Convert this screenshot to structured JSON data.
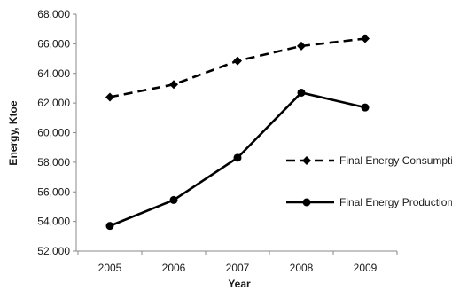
{
  "chart_data": {
    "type": "line",
    "title": "",
    "xlabel": "Year",
    "ylabel": "Energy, Ktoe",
    "categories": [
      "2005",
      "2006",
      "2007",
      "2008",
      "2009"
    ],
    "ylim": [
      52000,
      68000
    ],
    "yticks": [
      "52,000",
      "54,000",
      "56,000",
      "58,000",
      "60,000",
      "62,000",
      "64,000",
      "66,000",
      "68,000"
    ],
    "grid": false,
    "legend_position": "right",
    "series": [
      {
        "name": "Final Energy Consumption",
        "values": [
          62400,
          63250,
          64850,
          65850,
          66350
        ],
        "line_style": "dashed",
        "marker": "diamond",
        "color": "#000000"
      },
      {
        "name": "Final Energy Production",
        "values": [
          53700,
          55450,
          58300,
          62700,
          61700
        ],
        "line_style": "solid",
        "marker": "circle",
        "color": "#000000"
      }
    ]
  }
}
